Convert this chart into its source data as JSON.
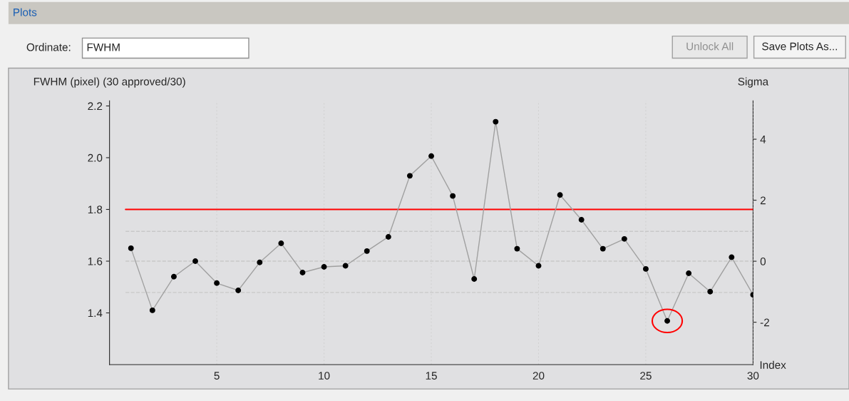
{
  "chart_data": {
    "type": "line",
    "title": "Plots",
    "annotations": [
      "Ordinate:",
      "FWHM",
      "Unlock All",
      "Save Plots As..."
    ],
    "xlabel": "Index",
    "ylabel": "FWHM (pixel) (30 approved/30)",
    "y2label": "Sigma",
    "x": [
      1,
      2,
      3,
      4,
      5,
      6,
      7,
      8,
      9,
      10,
      11,
      12,
      13,
      14,
      15,
      16,
      17,
      18,
      19,
      20,
      21,
      22,
      23,
      24,
      25,
      26,
      27,
      28,
      29,
      30
    ],
    "series": [
      {
        "color": "#a0a0a0",
        "values": [
          1.65,
          1.41,
          1.54,
          1.6,
          1.515,
          1.487,
          1.595,
          1.669,
          1.556,
          1.578,
          1.582,
          1.639,
          1.694,
          1.93,
          2.006,
          1.852,
          1.531,
          2.139,
          1.648,
          1.582,
          1.856,
          1.76,
          1.648,
          1.686,
          1.57,
          1.369,
          1.553,
          1.482,
          1.615,
          1.47
        ]
      }
    ],
    "marker": "circle",
    "line_style": "solid",
    "xlim": [
      0,
      30
    ],
    "xticks": [
      5,
      10,
      15,
      20,
      25,
      30
    ],
    "ylim": [
      1.2,
      2.22
    ],
    "yticks": [
      {
        "value": 1.4,
        "label": "1.4"
      },
      {
        "value": 1.6,
        "label": "1.6"
      },
      {
        "value": 1.8,
        "label": "1.8"
      },
      {
        "value": 2.0,
        "label": "2.0"
      },
      {
        "value": 2.2,
        "label": "2.2"
      }
    ],
    "y2lim": [
      -3.39,
      5.26
    ],
    "y2ticks": [
      {
        "value": -2,
        "label": "-2"
      },
      0,
      2,
      4
    ],
    "ref_lines": [
      {
        "axis": "y",
        "value": 1.8,
        "color": "#ff0000",
        "line_style": "solid"
      },
      {
        "axis": "y",
        "value": 1.715,
        "color": "#c8c8c8",
        "line_style": "dashed"
      },
      {
        "axis": "y",
        "value": 1.6,
        "color": "#c8c8c8",
        "line_style": "dashed"
      },
      {
        "axis": "y",
        "value": 1.479,
        "color": "#c8c8c8",
        "line_style": "dashed"
      }
    ],
    "grid": "x",
    "legend": false
  }
}
